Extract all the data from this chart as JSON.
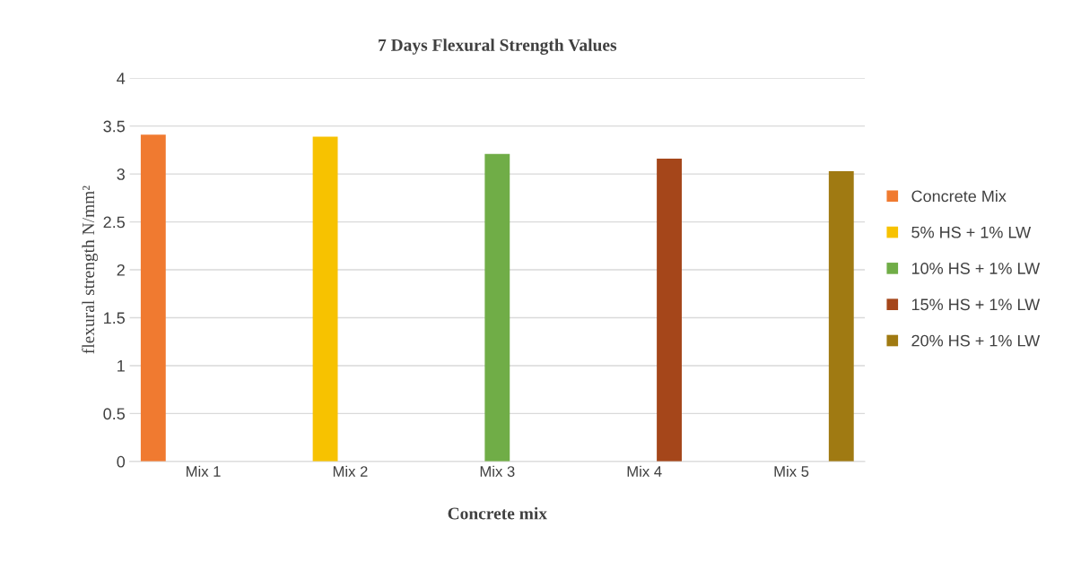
{
  "chart_data": {
    "type": "bar",
    "title": "7 Days Flexural Strength Values",
    "xlabel": "Concrete mix",
    "ylabel": "flexural strength N/mm²",
    "categories": [
      "Mix 1",
      "Mix 2",
      "Mix 3",
      "Mix 4",
      "Mix 5"
    ],
    "series": [
      {
        "name": "Concrete Mix",
        "color": "#f07a30",
        "values": [
          3.41,
          null,
          null,
          null,
          null
        ]
      },
      {
        "name": "5% HS + 1% LW",
        "color": "#f7c200",
        "values": [
          null,
          3.39,
          null,
          null,
          null
        ]
      },
      {
        "name": "10% HS + 1% LW",
        "color": "#70ad47",
        "values": [
          null,
          null,
          3.21,
          null,
          null
        ]
      },
      {
        "name": "15% HS + 1% LW",
        "color": "#a5461a",
        "values": [
          null,
          null,
          null,
          3.16,
          null
        ]
      },
      {
        "name": "20% HS + 1% LW",
        "color": "#a07a12",
        "values": [
          null,
          null,
          null,
          null,
          3.03
        ]
      }
    ],
    "ylim": [
      0,
      4
    ],
    "yticks": [
      0,
      0.5,
      1,
      1.5,
      2,
      2.5,
      3,
      3.5,
      4
    ],
    "grid": "y",
    "legend": "right"
  }
}
